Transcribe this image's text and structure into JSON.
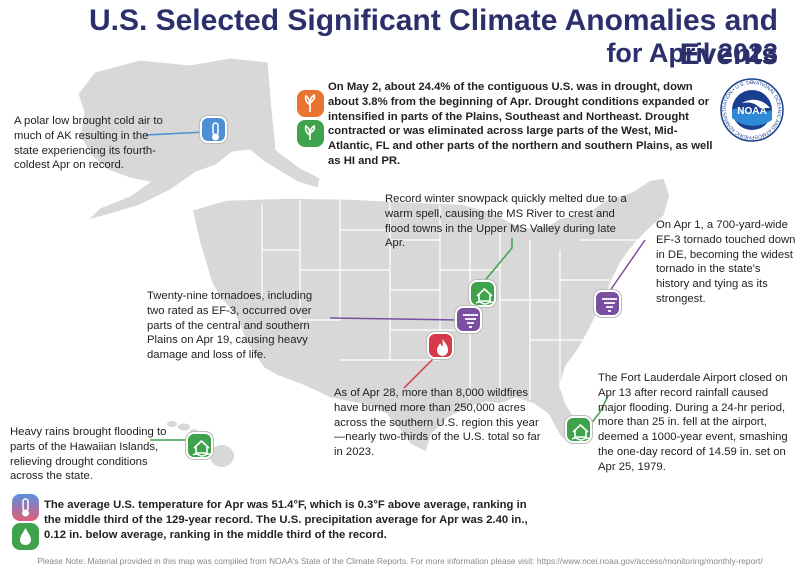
{
  "title": {
    "line1": "U.S. Selected Significant Climate Anomalies and Events",
    "line2": "for April 2023"
  },
  "drought_note": {
    "text1": "On May 2, about 24.4% of the contiguous U.S. was in drought, down about 3.8% from the beginning of Apr. Drought conditions expanded or intensified in parts of the Plains, Southeast and Northeast.",
    "text2": "Drought contracted or was eliminated across large parts of the West, Mid-Atlantic, FL and other parts of the northern and southern Plains, as well as HI and PR."
  },
  "noaa_logo": {
    "center_text": "NOAA",
    "ring_text": "NATIONAL OCEANIC AND ATMOSPHERIC ADMINISTRATION • U.S. DEPARTMENT OF COMMERCE"
  },
  "alaska_note": {
    "text": "A polar low brought cold air to much of AK resulting in the state experiencing its fourth-coldest Apr on record."
  },
  "snowpack_note": {
    "text": "Record winter snowpack quickly melted due to a warm spell, causing the MS River to crest and flood towns in the Upper MS Valley during late Apr."
  },
  "delaware_note": {
    "text": "On Apr 1, a 700-yard-wide EF-3 tornado touched down in DE, becoming the widest tornado in the state's history and tying as its strongest."
  },
  "tornadoes_note": {
    "text": "Twenty-nine tornadoes, including two rated as EF-3, occurred over parts of the central and southern Plains on Apr 19, causing heavy damage and loss of life."
  },
  "fort_lauderdale_note": {
    "text": "The Fort Lauderdale Airport closed on Apr 13 after record rainfall caused major flooding. During a 24-hr period, more than 25 in. fell at the airport, deemed a 1000-year event, smashing the one-day record of 14.59 in. set on Apr 25, 1979."
  },
  "hawaii_note": {
    "text": "Heavy rains brought flooding to parts of the Hawaiian Islands, relieving drought conditions across the state."
  },
  "wildfire_note": {
    "text": "As of Apr 28, more than 8,000 wildfires have burned more than 250,000 acres across the southern U.S. region this year—nearly two-thirds of the U.S. total so far in 2023."
  },
  "national_note": {
    "text": "The average U.S. temperature for Apr was 51.4°F, which is 0.3°F above average, ranking in the middle third of the 129-year record. The U.S. precipitation average for Apr was 2.40 in., 0.12 in. below average, ranking in the middle third of the record."
  },
  "footer": {
    "text": "Please Note: Material provided in this map was compiled from NOAA's State of the Climate Reports. For more information please visit: https://www.ncei.noaa.gov/access/monitoring/monthly-report/"
  },
  "colors": {
    "title": "#2b2f6b",
    "land": "#d8d8d8",
    "state_border": "#ffffff",
    "drought": "#e8742f",
    "wet": "#3fa34d",
    "cold": "#4d8fd6",
    "tornado": "#7a4fa0",
    "fire": "#d63a4a",
    "leader_green": "#3fa34d",
    "leader_purple": "#7a4fa0",
    "leader_red": "#d63a4a",
    "leader_blue": "#4d8fd6"
  },
  "icons": [
    "drought-icon",
    "wet-icon",
    "thermometer-icon",
    "flood-house-icon",
    "tornado-icon",
    "wildfire-icon",
    "noaa-logo"
  ]
}
